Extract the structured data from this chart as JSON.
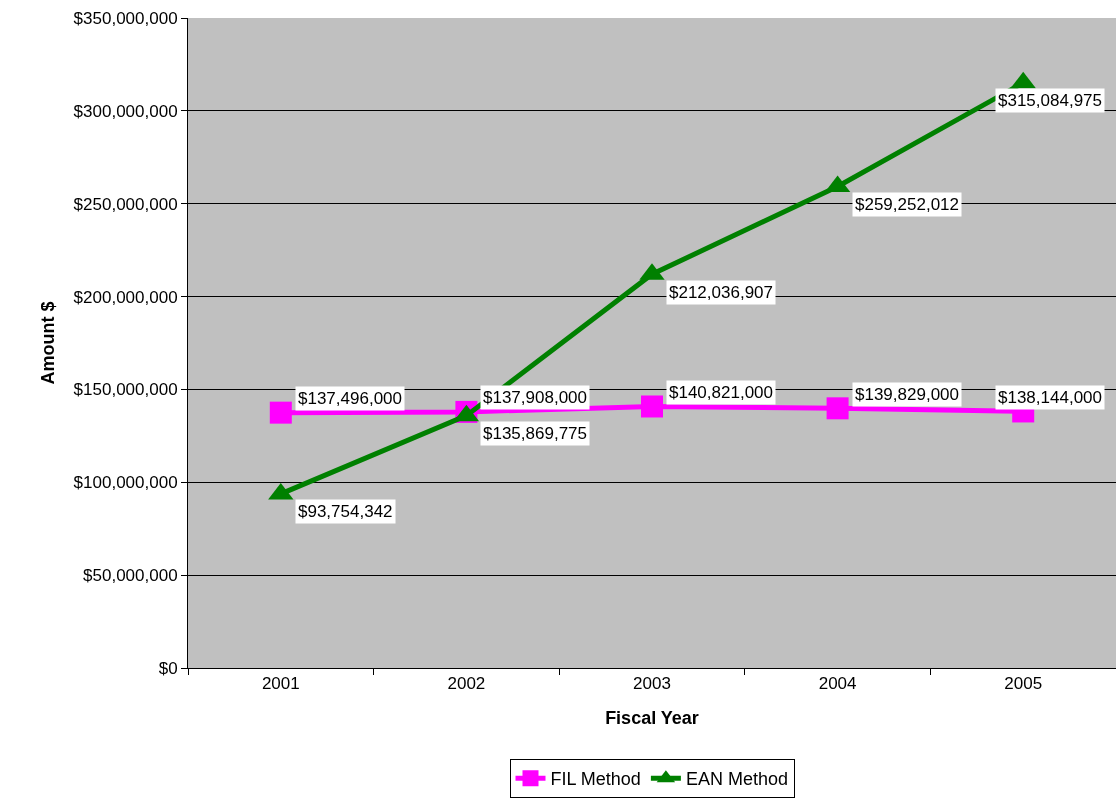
{
  "chart_data": {
    "type": "line",
    "xlabel": "Fiscal Year",
    "ylabel": "Amount $",
    "categories": [
      "2001",
      "2002",
      "2003",
      "2004",
      "2005"
    ],
    "series": [
      {
        "name": "FIL Method",
        "color": "#ff00ff",
        "marker": "square",
        "values": [
          137496000,
          137908000,
          140821000,
          139829000,
          138144000
        ],
        "value_labels": [
          "$137,496,000",
          "$137,908,000",
          "$140,821,000",
          "$139,829,000",
          "$138,144,000"
        ]
      },
      {
        "name": "EAN Method",
        "color": "#008000",
        "marker": "triangle",
        "values": [
          93754342,
          135869775,
          212036907,
          259252012,
          315084975
        ],
        "value_labels": [
          "$93,754,342",
          "$135,869,775",
          "$212,036,907",
          "$259,252,012",
          "$315,084,975"
        ]
      }
    ],
    "ylim": [
      0,
      350000000
    ],
    "yticks": [
      {
        "value": 0,
        "label": "$0"
      },
      {
        "value": 50000000,
        "label": "$50,000,000"
      },
      {
        "value": 100000000,
        "label": "$100,000,000"
      },
      {
        "value": 150000000,
        "label": "$150,000,000"
      },
      {
        "value": 200000000,
        "label": "$200,000,000"
      },
      {
        "value": 250000000,
        "label": "$250,000,000"
      },
      {
        "value": 300000000,
        "label": "$300,000,000"
      },
      {
        "value": 350000000,
        "label": "$350,000,000"
      }
    ],
    "grid": "y",
    "legend": "bottom",
    "line_style": "solid"
  }
}
